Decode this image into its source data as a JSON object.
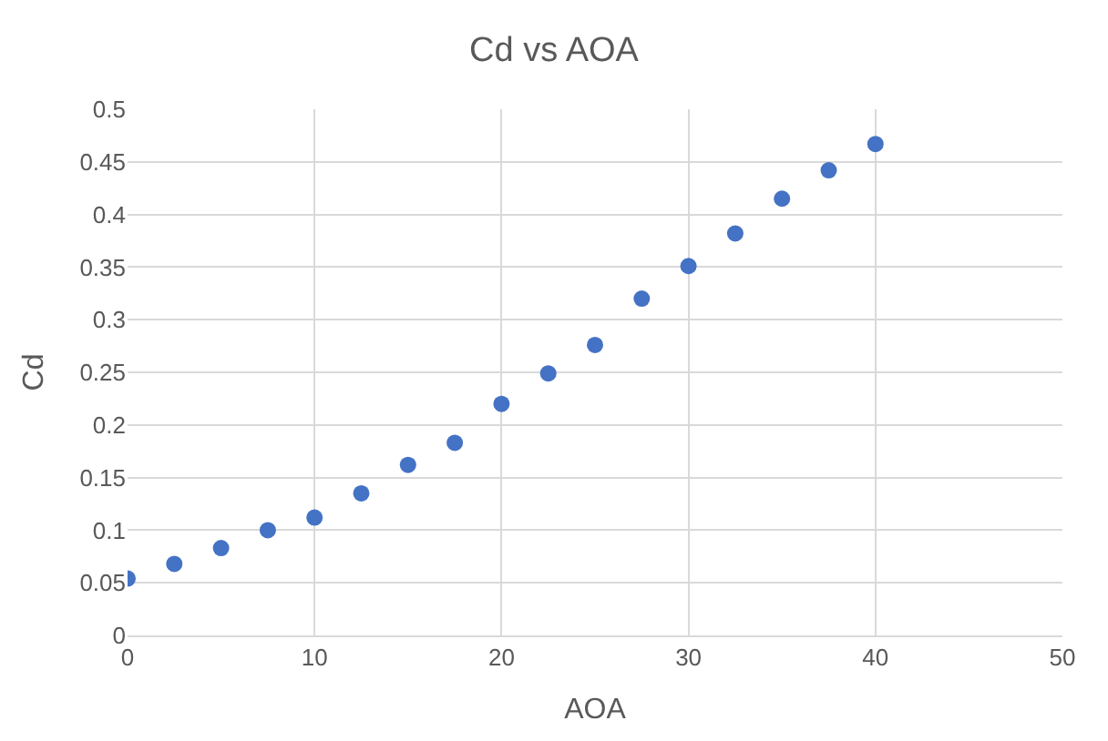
{
  "chart_data": {
    "type": "scatter",
    "title": "Cd vs AOA",
    "xlabel": "AOA",
    "ylabel": "Cd",
    "x": [
      0,
      2.5,
      5,
      7.5,
      10,
      12.5,
      15,
      17.5,
      20,
      22.5,
      25,
      27.5,
      30,
      32.5,
      35,
      37.5,
      40
    ],
    "series": [
      {
        "color": "#4472c4",
        "values": [
          0.054,
          0.068,
          0.083,
          0.1,
          0.112,
          0.135,
          0.162,
          0.183,
          0.22,
          0.249,
          0.276,
          0.32,
          0.351,
          0.382,
          0.415,
          0.442,
          0.467
        ]
      }
    ],
    "xlim": [
      0,
      50
    ],
    "xticks": [
      0,
      10,
      20,
      30,
      40,
      50
    ],
    "ylim": [
      0,
      0.5
    ],
    "yticks": [
      0,
      0.05,
      0.1,
      0.15,
      0.2,
      0.25,
      0.3,
      0.35,
      0.4,
      0.45,
      0.5
    ],
    "grid": true,
    "marker": "circle"
  }
}
